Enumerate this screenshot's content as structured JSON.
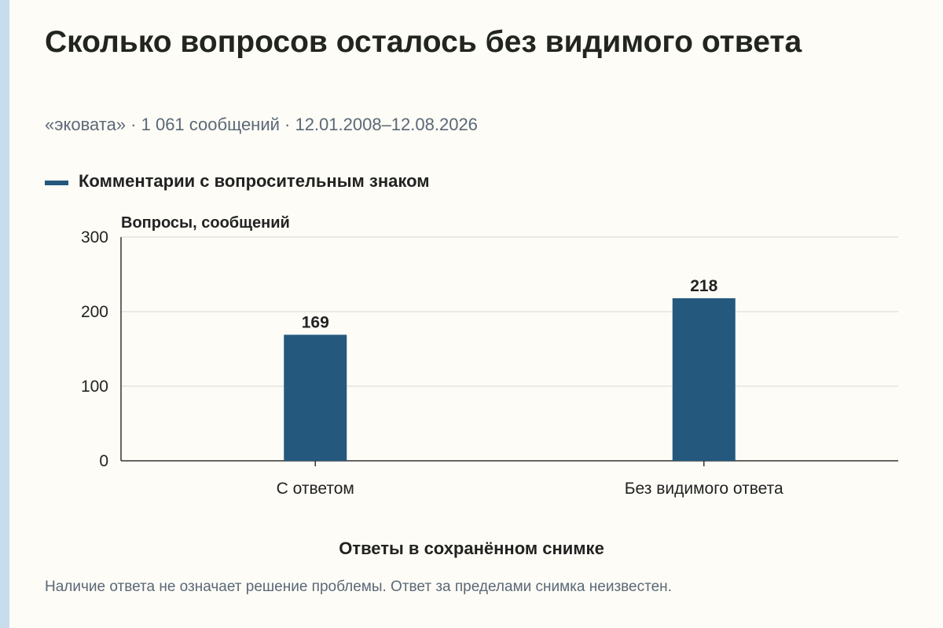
{
  "title": "Сколько вопросов осталось без видимого ответа",
  "subtitle": "«эковата» · 1 061 сообщений · 12.01.2008–12.08.2026",
  "note": "Наличие ответа не означает решение проблемы. Ответ за пределами снимка неизвестен.",
  "colors": {
    "bar": "#24587d",
    "grid": "#d8d8d4",
    "axis": "#333333",
    "accent_strip": "#c7dced"
  },
  "chart_data": {
    "type": "bar",
    "categories": [
      "С ответом",
      "Без видимого ответа"
    ],
    "series": [
      {
        "name": "Комментарии с вопросительным знаком",
        "values": [
          169,
          218
        ]
      }
    ],
    "ylabel": "Вопросы, сообщений",
    "xlabel": "Ответы в сохранённом снимке",
    "ylim": [
      0,
      300
    ],
    "yticks": [
      0,
      100,
      200,
      300
    ],
    "grid": true,
    "legend": "top-left",
    "data_labels": true
  }
}
